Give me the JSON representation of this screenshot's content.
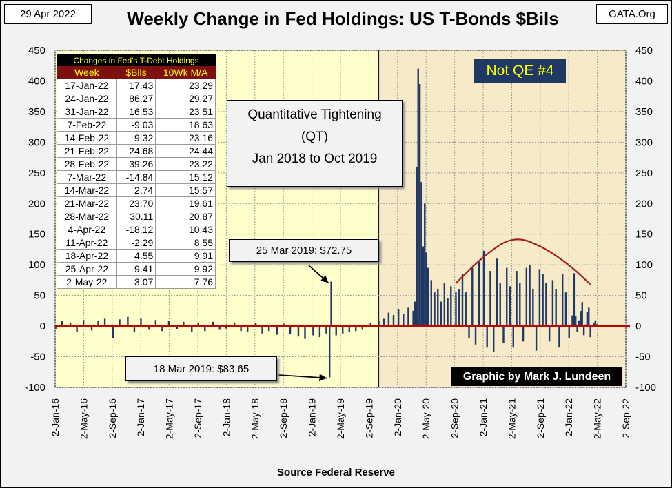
{
  "header": {
    "date": "29 Apr 2022",
    "source_site": "GATA.Org"
  },
  "chart_data": {
    "type": "bar",
    "title": "Weekly Change in Fed Holdings: US T-Bonds $Bils",
    "xlabel": "Source Federal Reserve",
    "ylabel": "",
    "ylim": [
      -100,
      450
    ],
    "yticks": [
      -100,
      -50,
      0,
      50,
      100,
      150,
      200,
      250,
      300,
      350,
      400,
      450
    ],
    "x_range": [
      "2016-01-02",
      "2022-09-02"
    ],
    "xtick_labels": [
      "2-Jan-16",
      "2-May-16",
      "2-Sep-16",
      "2-Jan-17",
      "2-May-17",
      "2-Sep-17",
      "2-Jan-18",
      "2-May-18",
      "2-Sep-18",
      "2-Jan-19",
      "2-May-19",
      "2-Sep-19",
      "2-Jan-20",
      "2-May-20",
      "2-Sep-20",
      "2-Jan-21",
      "2-May-21",
      "2-Sep-21",
      "2-Jan-22",
      "2-May-22",
      "2-Sep-22"
    ],
    "grid": true,
    "legend": "none",
    "colors": {
      "bars": "#1f3864",
      "zero_line": "#c00000",
      "trend_arc": "#a01c1c",
      "qe_shade": "#f7eac8",
      "bg_shade": "#ffffcc",
      "notqe_box": "#1f3864"
    },
    "series": [
      {
        "values": [
          {
            "x": "2016-01-04",
            "y": -5
          },
          {
            "x": "2016-02-01",
            "y": 8
          },
          {
            "x": "2016-03-07",
            "y": 6
          },
          {
            "x": "2016-04-04",
            "y": -9
          },
          {
            "x": "2016-05-02",
            "y": 10
          },
          {
            "x": "2016-06-06",
            "y": -7
          },
          {
            "x": "2016-07-04",
            "y": 9
          },
          {
            "x": "2016-08-01",
            "y": 12
          },
          {
            "x": "2016-09-05",
            "y": -20
          },
          {
            "x": "2016-10-03",
            "y": 11
          },
          {
            "x": "2016-11-07",
            "y": 15
          },
          {
            "x": "2016-12-05",
            "y": -10
          },
          {
            "x": "2017-01-02",
            "y": 12
          },
          {
            "x": "2017-02-06",
            "y": -6
          },
          {
            "x": "2017-03-06",
            "y": 10
          },
          {
            "x": "2017-04-03",
            "y": -8
          },
          {
            "x": "2017-05-01",
            "y": 8
          },
          {
            "x": "2017-06-05",
            "y": -5
          },
          {
            "x": "2017-07-03",
            "y": 7
          },
          {
            "x": "2017-08-07",
            "y": -9
          },
          {
            "x": "2017-09-04",
            "y": 6
          },
          {
            "x": "2017-10-02",
            "y": -8
          },
          {
            "x": "2017-11-06",
            "y": 7
          },
          {
            "x": "2017-12-04",
            "y": -6
          },
          {
            "x": "2018-01-01",
            "y": -4
          },
          {
            "x": "2018-02-05",
            "y": 6
          },
          {
            "x": "2018-03-05",
            "y": -8
          },
          {
            "x": "2018-04-02",
            "y": -10
          },
          {
            "x": "2018-05-07",
            "y": 5
          },
          {
            "x": "2018-06-04",
            "y": -12
          },
          {
            "x": "2018-07-02",
            "y": -8
          },
          {
            "x": "2018-08-06",
            "y": -14
          },
          {
            "x": "2018-09-03",
            "y": 4
          },
          {
            "x": "2018-10-01",
            "y": -13
          },
          {
            "x": "2018-11-05",
            "y": -17
          },
          {
            "x": "2018-12-03",
            "y": -21
          },
          {
            "x": "2019-01-07",
            "y": -15
          },
          {
            "x": "2019-02-04",
            "y": -18
          },
          {
            "x": "2019-03-04",
            "y": -12
          },
          {
            "x": "2019-03-18",
            "y": -83.65
          },
          {
            "x": "2019-03-25",
            "y": 72.75
          },
          {
            "x": "2019-04-15",
            "y": -15
          },
          {
            "x": "2019-05-13",
            "y": -12
          },
          {
            "x": "2019-06-10",
            "y": -10
          },
          {
            "x": "2019-07-08",
            "y": -8
          },
          {
            "x": "2019-08-05",
            "y": -6
          },
          {
            "x": "2019-09-09",
            "y": 5
          },
          {
            "x": "2019-10-14",
            "y": 8
          },
          {
            "x": "2019-11-04",
            "y": 12
          },
          {
            "x": "2019-11-25",
            "y": 22
          },
          {
            "x": "2019-12-16",
            "y": 18
          },
          {
            "x": "2020-01-06",
            "y": 28
          },
          {
            "x": "2020-01-27",
            "y": 20
          },
          {
            "x": "2020-02-17",
            "y": 30
          },
          {
            "x": "2020-03-09",
            "y": 25
          },
          {
            "x": "2020-03-16",
            "y": 40
          },
          {
            "x": "2020-03-23",
            "y": 260
          },
          {
            "x": "2020-03-30",
            "y": 420
          },
          {
            "x": "2020-04-06",
            "y": 395
          },
          {
            "x": "2020-04-13",
            "y": 235
          },
          {
            "x": "2020-04-20",
            "y": 130
          },
          {
            "x": "2020-04-27",
            "y": 200
          },
          {
            "x": "2020-05-04",
            "y": 120
          },
          {
            "x": "2020-05-11",
            "y": 95
          },
          {
            "x": "2020-05-25",
            "y": 75
          },
          {
            "x": "2020-06-08",
            "y": 55
          },
          {
            "x": "2020-06-22",
            "y": 60
          },
          {
            "x": "2020-07-06",
            "y": 40
          },
          {
            "x": "2020-07-20",
            "y": 70
          },
          {
            "x": "2020-08-03",
            "y": 45
          },
          {
            "x": "2020-08-17",
            "y": 65
          },
          {
            "x": "2020-09-07",
            "y": 55
          },
          {
            "x": "2020-09-21",
            "y": 60
          },
          {
            "x": "2020-10-05",
            "y": 85
          },
          {
            "x": "2020-10-19",
            "y": 55
          },
          {
            "x": "2020-11-02",
            "y": -20
          },
          {
            "x": "2020-11-16",
            "y": 95
          },
          {
            "x": "2020-11-30",
            "y": -30
          },
          {
            "x": "2020-12-14",
            "y": 105
          },
          {
            "x": "2021-01-04",
            "y": 123
          },
          {
            "x": "2021-01-18",
            "y": -35
          },
          {
            "x": "2021-02-01",
            "y": 90
          },
          {
            "x": "2021-02-15",
            "y": -42
          },
          {
            "x": "2021-03-01",
            "y": 110
          },
          {
            "x": "2021-03-15",
            "y": 70
          },
          {
            "x": "2021-03-29",
            "y": -28
          },
          {
            "x": "2021-04-12",
            "y": 95
          },
          {
            "x": "2021-04-26",
            "y": 65
          },
          {
            "x": "2021-05-10",
            "y": -35
          },
          {
            "x": "2021-05-24",
            "y": 90
          },
          {
            "x": "2021-06-07",
            "y": 70
          },
          {
            "x": "2021-06-21",
            "y": -25
          },
          {
            "x": "2021-07-05",
            "y": 95
          },
          {
            "x": "2021-07-19",
            "y": 100
          },
          {
            "x": "2021-08-02",
            "y": 60
          },
          {
            "x": "2021-08-16",
            "y": -40
          },
          {
            "x": "2021-08-30",
            "y": 93
          },
          {
            "x": "2021-09-13",
            "y": 85
          },
          {
            "x": "2021-09-27",
            "y": 70
          },
          {
            "x": "2021-10-11",
            "y": -25
          },
          {
            "x": "2021-10-25",
            "y": 75
          },
          {
            "x": "2021-11-08",
            "y": 60
          },
          {
            "x": "2021-11-22",
            "y": -35
          },
          {
            "x": "2021-12-06",
            "y": 85
          },
          {
            "x": "2021-12-20",
            "y": 55
          },
          {
            "x": "2022-01-03",
            "y": -20
          },
          {
            "x": "2022-01-17",
            "y": 17.43
          },
          {
            "x": "2022-01-24",
            "y": 86.27
          },
          {
            "x": "2022-01-31",
            "y": 16.53
          },
          {
            "x": "2022-02-07",
            "y": -9.03
          },
          {
            "x": "2022-02-14",
            "y": 9.32
          },
          {
            "x": "2022-02-21",
            "y": 24.68
          },
          {
            "x": "2022-02-28",
            "y": 39.26
          },
          {
            "x": "2022-03-07",
            "y": -14.84
          },
          {
            "x": "2022-03-14",
            "y": 2.74
          },
          {
            "x": "2022-03-21",
            "y": 23.7
          },
          {
            "x": "2022-03-28",
            "y": 30.11
          },
          {
            "x": "2022-04-04",
            "y": -18.12
          },
          {
            "x": "2022-04-11",
            "y": -2.29
          },
          {
            "x": "2022-04-18",
            "y": 4.55
          },
          {
            "x": "2022-04-25",
            "y": 9.41
          },
          {
            "x": "2022-05-02",
            "y": 3.07
          }
        ]
      }
    ],
    "trend_arc": [
      {
        "x": "2020-09-07",
        "y": 70
      },
      {
        "x": "2021-01-04",
        "y": 115
      },
      {
        "x": "2021-05-10",
        "y": 147
      },
      {
        "x": "2021-09-13",
        "y": 130
      },
      {
        "x": "2022-01-10",
        "y": 98
      },
      {
        "x": "2022-04-04",
        "y": 68
      }
    ],
    "annotations": {
      "qt_line1": "Quantitative Tightening",
      "qt_line2": "(QT)",
      "qt_line3": "Jan 2018 to Oct 2019",
      "mar25": "25 Mar 2019:  $72.75",
      "mar18": "18 Mar 2019:  $83.65",
      "not_qe": "Not QE #4",
      "credit": "Graphic by Mark J. Lundeen"
    },
    "shaded_ranges": [
      {
        "from": "2019-10-14",
        "to": "2022-09-02"
      }
    ]
  },
  "table": {
    "caption": "Changes in Fed's T-Debt Holdings",
    "headers": [
      "Week",
      "$Bils",
      "10Wk M/A"
    ],
    "rows": [
      [
        "17-Jan-22",
        "17.43",
        "23.29"
      ],
      [
        "24-Jan-22",
        "86.27",
        "29.27"
      ],
      [
        "31-Jan-22",
        "16.53",
        "23.51"
      ],
      [
        "7-Feb-22",
        "-9.03",
        "18.63"
      ],
      [
        "14-Feb-22",
        "9.32",
        "23.16"
      ],
      [
        "21-Feb-22",
        "24.68",
        "24.44"
      ],
      [
        "28-Feb-22",
        "39.26",
        "23.22"
      ],
      [
        "7-Mar-22",
        "-14.84",
        "15.12"
      ],
      [
        "14-Mar-22",
        "2.74",
        "15.57"
      ],
      [
        "21-Mar-22",
        "23.70",
        "19.61"
      ],
      [
        "28-Mar-22",
        "30.11",
        "20.87"
      ],
      [
        "4-Apr-22",
        "-18.12",
        "10.43"
      ],
      [
        "11-Apr-22",
        "-2.29",
        "8.55"
      ],
      [
        "18-Apr-22",
        "4.55",
        "9.91"
      ],
      [
        "25-Apr-22",
        "9.41",
        "9.92"
      ],
      [
        "2-May-22",
        "3.07",
        "7.76"
      ]
    ]
  }
}
